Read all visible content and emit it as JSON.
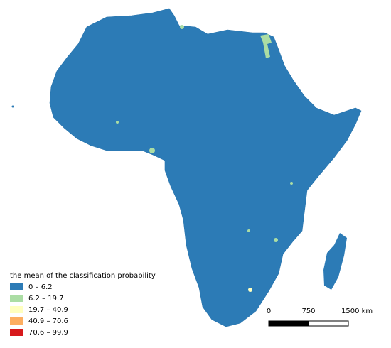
{
  "legend": {
    "title": "the mean of the classification probability",
    "items": [
      {
        "label": "0 – 6.2",
        "color": "#2c7bb6"
      },
      {
        "label": "6.2 – 19.7",
        "color": "#abdda4"
      },
      {
        "label": "19.7 – 40.9",
        "color": "#ffffbf"
      },
      {
        "label": "40.9 – 70.6",
        "color": "#fdae61"
      },
      {
        "label": "70.6 – 99.9",
        "color": "#d7191c"
      }
    ]
  },
  "scale_bar": {
    "labels": [
      "0",
      "750",
      "1500 km"
    ]
  }
}
